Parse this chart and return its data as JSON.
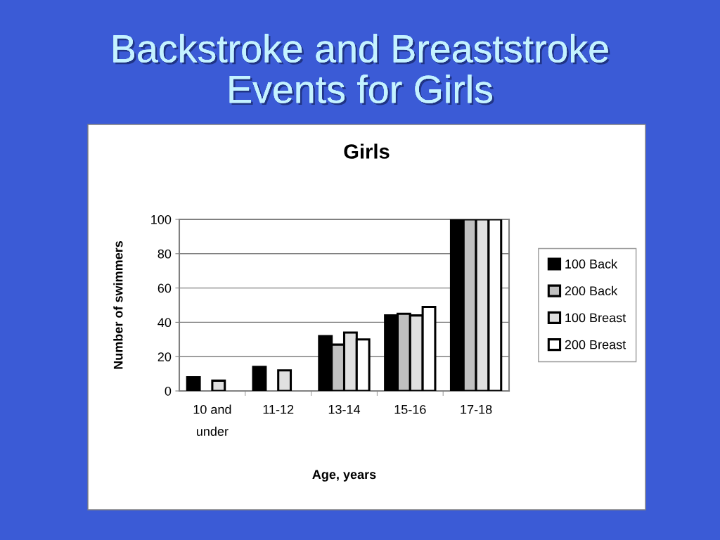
{
  "chart_data": {
    "type": "bar",
    "title": "Backstroke and Breaststroke\nEvents for Girls",
    "subtitle": "Girls",
    "xlabel": "Age, years",
    "ylabel": "Number of swimmers",
    "categories": [
      "10 and\nunder",
      "11-12",
      "13-14",
      "15-16",
      "17-18"
    ],
    "series": [
      {
        "name": "100 Back",
        "color": "#000000",
        "values": [
          8,
          14,
          32,
          44,
          100
        ]
      },
      {
        "name": "200 Back",
        "color": "#c0c0c0",
        "values": [
          null,
          null,
          27,
          45,
          100
        ]
      },
      {
        "name": "100 Breast",
        "color": "#e0e0e0",
        "values": [
          6,
          12,
          34,
          44,
          100
        ]
      },
      {
        "name": "200 Breast",
        "color": "#ffffff",
        "values": [
          null,
          null,
          30,
          49,
          100
        ]
      }
    ],
    "ylim": [
      0,
      100
    ],
    "yticks": [
      0,
      20,
      40,
      60,
      80,
      100
    ],
    "grid": "y",
    "legend": "right"
  }
}
